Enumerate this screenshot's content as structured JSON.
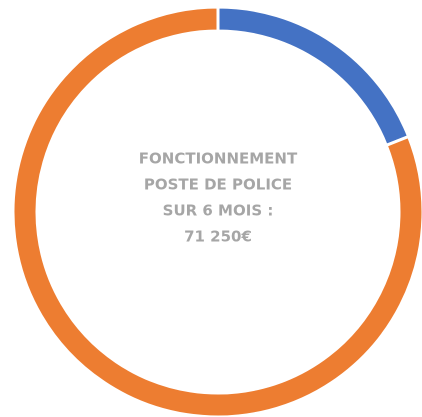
{
  "chart_data": {
    "type": "donut",
    "values": [
      19,
      81
    ],
    "colors": [
      "#4472c4",
      "#ed7d31"
    ],
    "center_label": [
      "FONCTIONNEMENT",
      "POSTE DE POLICE",
      "SUR 6 MOIS :",
      "71 250€"
    ]
  }
}
